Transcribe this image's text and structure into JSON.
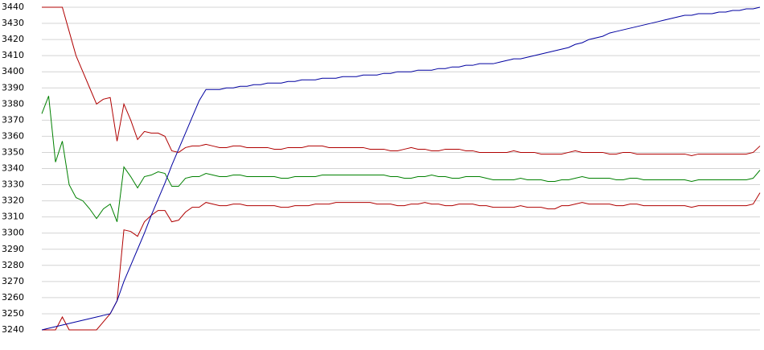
{
  "chart_data": {
    "type": "line",
    "ylim": [
      3240,
      3440
    ],
    "yticks": [
      3240,
      3250,
      3260,
      3270,
      3280,
      3290,
      3300,
      3310,
      3320,
      3330,
      3340,
      3350,
      3360,
      3370,
      3380,
      3390,
      3400,
      3410,
      3420,
      3430,
      3440
    ],
    "grid": true,
    "series": [
      {
        "color": "#b00000",
        "values": [
          3440,
          3440,
          3440,
          3440,
          3425,
          3410,
          3400,
          3390,
          3380,
          3383,
          3384,
          3357,
          3380,
          3370,
          3358,
          3363,
          3362,
          3362,
          3360,
          3351,
          3350,
          3353,
          3354,
          3354,
          3355,
          3354,
          3353,
          3353,
          3354,
          3354,
          3353,
          3353,
          3353,
          3353,
          3352,
          3352,
          3353,
          3353,
          3353,
          3354,
          3354,
          3354,
          3353,
          3353,
          3353,
          3353,
          3353,
          3353,
          3352,
          3352,
          3352,
          3351,
          3351,
          3352,
          3353,
          3352,
          3352,
          3351,
          3351,
          3352,
          3352,
          3352,
          3351,
          3351,
          3350,
          3350,
          3350,
          3350,
          3350,
          3351,
          3350,
          3350,
          3350,
          3349,
          3349,
          3349,
          3349,
          3350,
          3351,
          3350,
          3350,
          3350,
          3350,
          3349,
          3349,
          3350,
          3350,
          3349,
          3349,
          3349,
          3349,
          3349,
          3349,
          3349,
          3349,
          3348,
          3349,
          3349,
          3349,
          3349,
          3349,
          3349,
          3349,
          3349,
          3350,
          3354
        ]
      },
      {
        "color": "#008000",
        "values": [
          3374,
          3385,
          3344,
          3357,
          3330,
          3322,
          3320,
          3315,
          3309,
          3315,
          3318,
          3307,
          3341,
          3335,
          3328,
          3335,
          3336,
          3338,
          3337,
          3329,
          3329,
          3334,
          3335,
          3335,
          3337,
          3336,
          3335,
          3335,
          3336,
          3336,
          3335,
          3335,
          3335,
          3335,
          3335,
          3334,
          3334,
          3335,
          3335,
          3335,
          3335,
          3336,
          3336,
          3336,
          3336,
          3336,
          3336,
          3336,
          3336,
          3336,
          3336,
          3335,
          3335,
          3334,
          3334,
          3335,
          3335,
          3336,
          3335,
          3335,
          3334,
          3334,
          3335,
          3335,
          3335,
          3334,
          3333,
          3333,
          3333,
          3333,
          3334,
          3333,
          3333,
          3333,
          3332,
          3332,
          3333,
          3333,
          3334,
          3335,
          3334,
          3334,
          3334,
          3334,
          3333,
          3333,
          3334,
          3334,
          3333,
          3333,
          3333,
          3333,
          3333,
          3333,
          3333,
          3332,
          3333,
          3333,
          3333,
          3333,
          3333,
          3333,
          3333,
          3333,
          3334,
          3339
        ]
      },
      {
        "color": "#b00000",
        "values": [
          3240,
          3240,
          3240,
          3248,
          3240,
          3240,
          3240,
          3240,
          3240,
          3245,
          3250,
          3258,
          3302,
          3301,
          3298,
          3307,
          3311,
          3314,
          3314,
          3307,
          3308,
          3313,
          3316,
          3316,
          3319,
          3318,
          3317,
          3317,
          3318,
          3318,
          3317,
          3317,
          3317,
          3317,
          3317,
          3316,
          3316,
          3317,
          3317,
          3317,
          3318,
          3318,
          3318,
          3319,
          3319,
          3319,
          3319,
          3319,
          3319,
          3318,
          3318,
          3318,
          3317,
          3317,
          3318,
          3318,
          3319,
          3318,
          3318,
          3317,
          3317,
          3318,
          3318,
          3318,
          3317,
          3317,
          3316,
          3316,
          3316,
          3316,
          3317,
          3316,
          3316,
          3316,
          3315,
          3315,
          3317,
          3317,
          3318,
          3319,
          3318,
          3318,
          3318,
          3318,
          3317,
          3317,
          3318,
          3318,
          3317,
          3317,
          3317,
          3317,
          3317,
          3317,
          3317,
          3316,
          3317,
          3317,
          3317,
          3317,
          3317,
          3317,
          3317,
          3317,
          3318,
          3325
        ]
      },
      {
        "color": "#0000a0",
        "values": [
          3240,
          3241,
          3242,
          3243,
          3244,
          3245,
          3246,
          3247,
          3248,
          3249,
          3250,
          3258,
          3270,
          3280,
          3290,
          3300,
          3311,
          3321,
          3331,
          3342,
          3352,
          3362,
          3372,
          3382,
          3389,
          3389,
          3389,
          3390,
          3390,
          3391,
          3391,
          3392,
          3392,
          3393,
          3393,
          3393,
          3394,
          3394,
          3395,
          3395,
          3395,
          3396,
          3396,
          3396,
          3397,
          3397,
          3397,
          3398,
          3398,
          3398,
          3399,
          3399,
          3400,
          3400,
          3400,
          3401,
          3401,
          3401,
          3402,
          3402,
          3403,
          3403,
          3404,
          3404,
          3405,
          3405,
          3405,
          3406,
          3407,
          3408,
          3408,
          3409,
          3410,
          3411,
          3412,
          3413,
          3414,
          3415,
          3417,
          3418,
          3420,
          3421,
          3422,
          3424,
          3425,
          3426,
          3427,
          3428,
          3429,
          3430,
          3431,
          3432,
          3433,
          3434,
          3435,
          3435,
          3436,
          3436,
          3436,
          3437,
          3437,
          3438,
          3438,
          3439,
          3439,
          3440
        ]
      }
    ]
  }
}
